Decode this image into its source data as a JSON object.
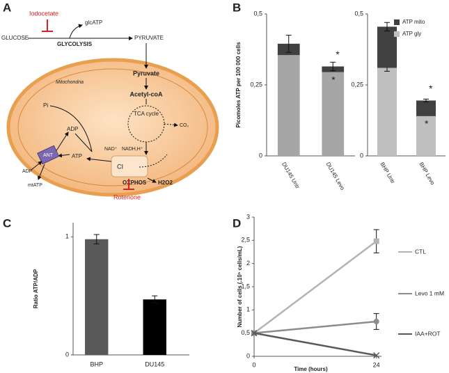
{
  "panel_labels": [
    "A",
    "B",
    "C",
    "D"
  ],
  "diagram": {
    "inhibitor_glycolysis": "Iodocetate",
    "glycolytic_atp": "glcATP",
    "glucose": "GLUCOSE",
    "glycolysis": "GLYCOLYSIS",
    "pyruvate_cytosol": "PYRUVATE",
    "compartment": "Mitochondria",
    "pyruvate_mito": "Pyruvate",
    "acetyl_coa": "Acetyl-coA",
    "tca": "TCA cycle",
    "co2": "CO₂",
    "pi": "Pi",
    "adp_in": "ADP",
    "atp_in": "ATP",
    "nad": "NAD⁺",
    "nadh": "NADH,H⁺",
    "complex": "CI",
    "transporter": "ANT",
    "adp_out": "ADP",
    "mtatp": "mtATP",
    "oxphos": "OXPHOS",
    "h2o2": "H2O2",
    "inhibitor_complex": "Rotenone"
  },
  "chart_data": [
    {
      "type": "stacked_bar",
      "ylabel": "Picomoles ATP per 100 000 cells",
      "categories": [
        "DU145 Untr",
        "DU145 Levo"
      ],
      "series": [
        {
          "color": "#a6a6a6",
          "values": [
            0.355,
            0.295
          ],
          "errors": [
            null,
            null
          ]
        },
        {
          "color": "#404040",
          "values": [
            0.04,
            0.02
          ],
          "errors": [
            0.03,
            0.015
          ]
        }
      ],
      "ylim": [
        0,
        0.5
      ],
      "yticks": [
        0,
        {
          "value": 0.25,
          "label": "0,25"
        },
        {
          "value": 0.5,
          "label": "0,5"
        }
      ],
      "annotations": [
        "*",
        "*"
      ]
    },
    {
      "type": "stacked_bar",
      "categories": [
        "BHP Untr",
        "BHP Levo"
      ],
      "series": [
        {
          "name": "ATP gly",
          "color": "#bfbfbf",
          "values": [
            0.31,
            0.14
          ],
          "errors": [
            0.012,
            null
          ]
        },
        {
          "name": "ATP mito",
          "color": "#404040",
          "values": [
            0.145,
            0.055
          ],
          "errors": [
            0.015,
            0.005
          ]
        }
      ],
      "ylim": [
        0,
        0.5
      ],
      "yticks": [
        0,
        {
          "value": 0.25,
          "label": "0,25"
        },
        {
          "value": 0.5,
          "label": "0,5"
        }
      ],
      "legend": "upper right",
      "annotations": [
        "*",
        "*"
      ]
    },
    {
      "type": "bar",
      "ylabel": "Ratio ATP/ADP",
      "categories": [
        "BHP",
        "DU145"
      ],
      "values": [
        0.98,
        0.47
      ],
      "errors": [
        0.04,
        0.03
      ],
      "colors": [
        "#595959",
        "#000000"
      ],
      "ylim": [
        0,
        1.12
      ],
      "yticks": [
        0,
        1
      ]
    },
    {
      "type": "line",
      "ylabel": "Number of cells (.10⁵ cells/mL)",
      "xlabel": "Time (hours)",
      "x": [
        0,
        24
      ],
      "xlim": [
        0,
        25
      ],
      "xticks": [
        0,
        24
      ],
      "ylim": [
        0,
        3
      ],
      "yticks": [
        0,
        {
          "value": 0.5,
          "label": "0,5"
        },
        1,
        {
          "value": 1.5,
          "label": "1,5"
        },
        2,
        {
          "value": 2.5,
          "label": "2,5"
        },
        3
      ],
      "series": [
        {
          "name": "CTL",
          "color": "#b3b3b3",
          "marker": "square",
          "values": [
            0.5,
            2.48
          ],
          "errors": [
            null,
            0.25
          ]
        },
        {
          "name": "Levo 1 mM",
          "color": "#8c8c8c",
          "marker": "circle",
          "values": [
            0.5,
            0.75
          ],
          "errors": [
            null,
            0.17
          ]
        },
        {
          "name": "IAA+ROT",
          "color": "#595959",
          "marker": "x",
          "values": [
            0.5,
            0.02
          ],
          "errors": [
            null,
            null
          ]
        }
      ],
      "legend": "right"
    }
  ]
}
